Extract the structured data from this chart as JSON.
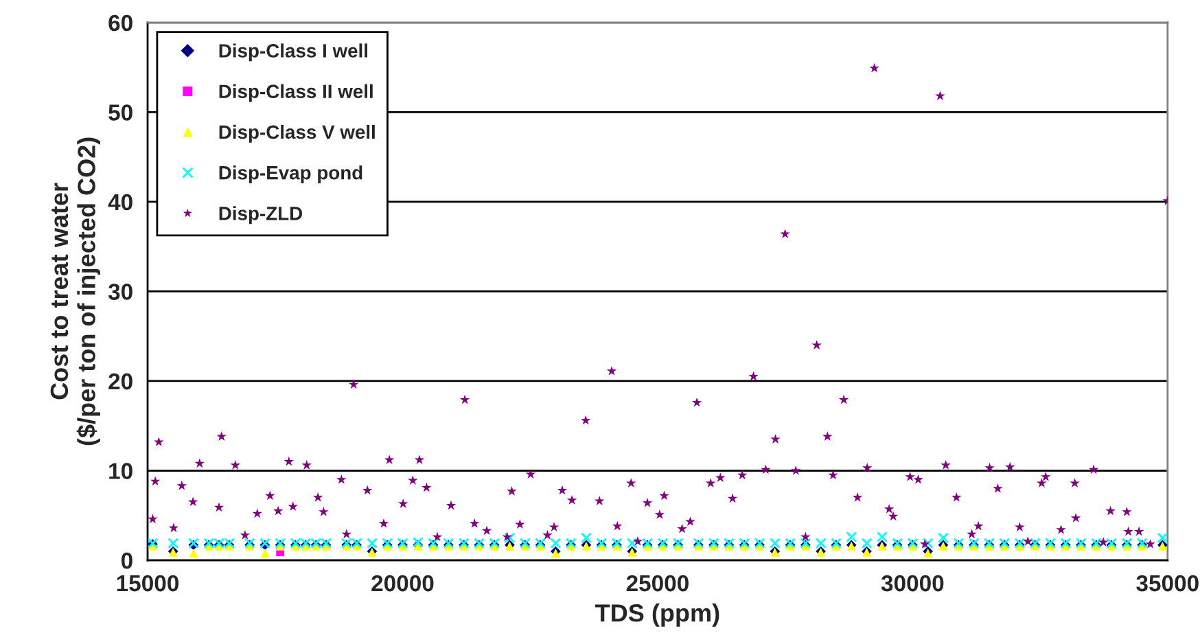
{
  "chart_data": {
    "type": "scatter",
    "xlabel": "TDS (ppm)",
    "ylabel": "Cost to treat water\n($/per ton of injected CO2)",
    "xlim": [
      15000,
      35000
    ],
    "xticks": [
      15000,
      20000,
      25000,
      30000,
      35000
    ],
    "ylim": [
      0,
      60
    ],
    "yticks": [
      0,
      10,
      20,
      30,
      40,
      50,
      60
    ],
    "grid": "y",
    "legend": "top left",
    "series": [
      {
        "name": "Disp-Class I well",
        "color": "#000080",
        "marker": "diamond",
        "x": [
          15100,
          15500,
          15900,
          16200,
          16400,
          16600,
          17000,
          17300,
          17600,
          17900,
          18100,
          18300,
          18500,
          18900,
          19100,
          19400,
          19700,
          20000,
          20300,
          20600,
          20900,
          21200,
          21500,
          21800,
          22100,
          22400,
          22700,
          23000,
          23300,
          23600,
          23900,
          24200,
          24500,
          24800,
          25100,
          25400,
          25800,
          26100,
          26400,
          26700,
          27000,
          27300,
          27600,
          27900,
          28200,
          28500,
          28800,
          29100,
          29400,
          29700,
          30000,
          30300,
          30600,
          30900,
          31200,
          31500,
          31800,
          32100,
          32400,
          32700,
          33000,
          33300,
          33600,
          33900,
          34200,
          34500,
          34900
        ],
        "values": [
          1.8,
          1.0,
          1.7,
          1.7,
          1.7,
          1.7,
          1.7,
          1.7,
          1.7,
          1.7,
          1.7,
          1.7,
          1.7,
          1.7,
          1.7,
          1.0,
          1.7,
          1.7,
          1.7,
          1.7,
          1.7,
          1.7,
          1.7,
          1.7,
          1.7,
          1.7,
          1.7,
          1.0,
          1.7,
          1.7,
          1.7,
          1.7,
          1.0,
          1.7,
          1.7,
          1.7,
          1.7,
          1.7,
          1.7,
          1.7,
          1.7,
          1.0,
          1.7,
          1.7,
          1.0,
          1.7,
          1.7,
          1.0,
          1.7,
          1.7,
          1.7,
          1.0,
          1.7,
          1.7,
          1.7,
          1.7,
          1.7,
          1.7,
          1.7,
          1.7,
          1.7,
          1.7,
          1.7,
          1.7,
          1.7,
          1.7,
          1.7
        ]
      },
      {
        "name": "Disp-Class II well",
        "color": "#ff00ff",
        "marker": "square",
        "x": [
          17600
        ],
        "values": [
          0.9
        ]
      },
      {
        "name": "Disp-Class V well",
        "color": "#ffff00",
        "marker": "triangle",
        "x": [
          15100,
          15500,
          15900,
          16200,
          16400,
          16600,
          17000,
          17300,
          17600,
          17900,
          18100,
          18300,
          18500,
          18900,
          19100,
          19400,
          19700,
          20000,
          20300,
          20600,
          20900,
          21200,
          21500,
          21800,
          22100,
          22400,
          22700,
          23000,
          23300,
          23600,
          23900,
          24200,
          24500,
          24800,
          25100,
          25400,
          25800,
          26100,
          26400,
          26700,
          27000,
          27300,
          27600,
          27900,
          28200,
          28500,
          28800,
          29100,
          29400,
          29700,
          30000,
          30300,
          30600,
          30900,
          31200,
          31500,
          31800,
          32100,
          32400,
          32700,
          33000,
          33300,
          33600,
          33900,
          34200,
          34500,
          34900
        ],
        "values": [
          1.6,
          0.9,
          0.8,
          1.6,
          1.6,
          1.6,
          1.6,
          0.8,
          1.6,
          1.6,
          1.6,
          1.6,
          1.6,
          1.6,
          1.6,
          0.9,
          1.6,
          1.6,
          1.6,
          1.6,
          1.6,
          1.6,
          1.6,
          1.6,
          1.6,
          1.6,
          1.6,
          0.8,
          1.6,
          1.6,
          1.6,
          1.6,
          0.9,
          1.6,
          1.6,
          1.6,
          1.6,
          1.6,
          1.6,
          1.6,
          1.6,
          0.9,
          1.6,
          1.6,
          0.9,
          1.6,
          1.6,
          0.9,
          1.6,
          1.6,
          1.6,
          0.8,
          1.6,
          1.6,
          1.6,
          1.6,
          1.6,
          1.6,
          1.6,
          1.6,
          1.6,
          1.6,
          1.6,
          1.6,
          1.6,
          1.6,
          1.6
        ]
      },
      {
        "name": "Disp-Evap pond",
        "color": "#00ffff",
        "marker": "cross",
        "x": [
          15100,
          15500,
          15900,
          16200,
          16400,
          16600,
          17000,
          17300,
          17600,
          17900,
          18100,
          18300,
          18500,
          18900,
          19100,
          19400,
          19700,
          20000,
          20300,
          20600,
          20900,
          21200,
          21500,
          21800,
          22100,
          22400,
          22700,
          23000,
          23300,
          23600,
          23900,
          24200,
          24500,
          24800,
          25100,
          25400,
          25800,
          26100,
          26400,
          26700,
          27000,
          27300,
          27600,
          27900,
          28200,
          28500,
          28800,
          29100,
          29400,
          29700,
          30000,
          30300,
          30600,
          30900,
          31200,
          31500,
          31800,
          32100,
          32400,
          32700,
          33000,
          33300,
          33600,
          33900,
          34200,
          34500,
          34900
        ],
        "values": [
          1.9,
          1.9,
          1.9,
          1.9,
          1.9,
          1.9,
          1.9,
          1.9,
          1.9,
          1.9,
          1.9,
          1.9,
          1.9,
          1.9,
          1.9,
          1.9,
          1.9,
          1.9,
          2.0,
          1.9,
          1.9,
          1.9,
          1.9,
          1.9,
          2.5,
          1.9,
          1.9,
          1.9,
          1.9,
          2.5,
          1.9,
          1.9,
          1.9,
          1.9,
          1.9,
          1.9,
          1.9,
          1.9,
          1.9,
          1.9,
          1.9,
          1.9,
          1.9,
          1.9,
          1.9,
          1.9,
          2.6,
          1.9,
          2.6,
          1.9,
          1.9,
          1.9,
          2.5,
          1.9,
          1.9,
          1.9,
          1.9,
          1.9,
          1.9,
          1.9,
          1.9,
          1.9,
          1.9,
          1.9,
          1.9,
          1.9,
          2.5
        ]
      },
      {
        "name": "Disp-ZLD",
        "color": "#800080",
        "marker": "star",
        "x": [
          15100,
          15150,
          15220,
          15510,
          15670,
          15890,
          16020,
          16400,
          16450,
          16720,
          16910,
          17150,
          17400,
          17560,
          17770,
          17850,
          18120,
          18340,
          18450,
          18800,
          18900,
          19040,
          19310,
          19630,
          19740,
          20010,
          20200,
          20330,
          20470,
          20680,
          20950,
          21220,
          21410,
          21650,
          22050,
          22140,
          22300,
          22510,
          22840,
          22970,
          23130,
          23320,
          23590,
          23860,
          24100,
          24210,
          24480,
          24610,
          24800,
          25040,
          25130,
          25480,
          25640,
          25770,
          26040,
          26230,
          26470,
          26660,
          26880,
          27120,
          27310,
          27500,
          27710,
          27900,
          28120,
          28330,
          28440,
          28650,
          28920,
          29110,
          29250,
          29540,
          29620,
          29950,
          30110,
          30240,
          30540,
          30650,
          30860,
          31160,
          31290,
          31510,
          31670,
          31910,
          32100,
          32260,
          32530,
          32610,
          32910,
          33180,
          33200,
          33550,
          33740,
          33880,
          34200,
          34230,
          34440,
          34660,
          35000
        ],
        "values": [
          4.6,
          8.8,
          13.2,
          3.6,
          8.3,
          6.5,
          10.8,
          5.9,
          13.8,
          10.6,
          2.8,
          5.2,
          7.2,
          5.5,
          11.0,
          6.0,
          10.6,
          7.0,
          5.4,
          9.0,
          2.9,
          19.6,
          7.8,
          4.1,
          11.2,
          6.3,
          8.9,
          11.2,
          8.1,
          2.6,
          6.1,
          17.9,
          4.1,
          3.3,
          2.6,
          7.7,
          4.0,
          9.6,
          2.8,
          3.7,
          7.8,
          6.7,
          15.6,
          6.6,
          21.1,
          3.8,
          8.6,
          2.1,
          6.4,
          5.1,
          7.2,
          3.5,
          4.3,
          17.6,
          8.6,
          9.2,
          6.9,
          9.5,
          20.5,
          10.1,
          13.5,
          36.4,
          10.0,
          2.6,
          24.0,
          13.8,
          9.5,
          17.9,
          7.0,
          10.3,
          54.9,
          5.7,
          4.9,
          9.3,
          9.0,
          1.8,
          51.8,
          10.6,
          7.0,
          2.9,
          3.8,
          10.3,
          8.0,
          10.4,
          3.7,
          2.1,
          8.6,
          9.3,
          3.4,
          8.6,
          4.7,
          10.1,
          2.0,
          5.5,
          5.4,
          3.2,
          3.2,
          1.8,
          40.1
        ]
      }
    ]
  }
}
